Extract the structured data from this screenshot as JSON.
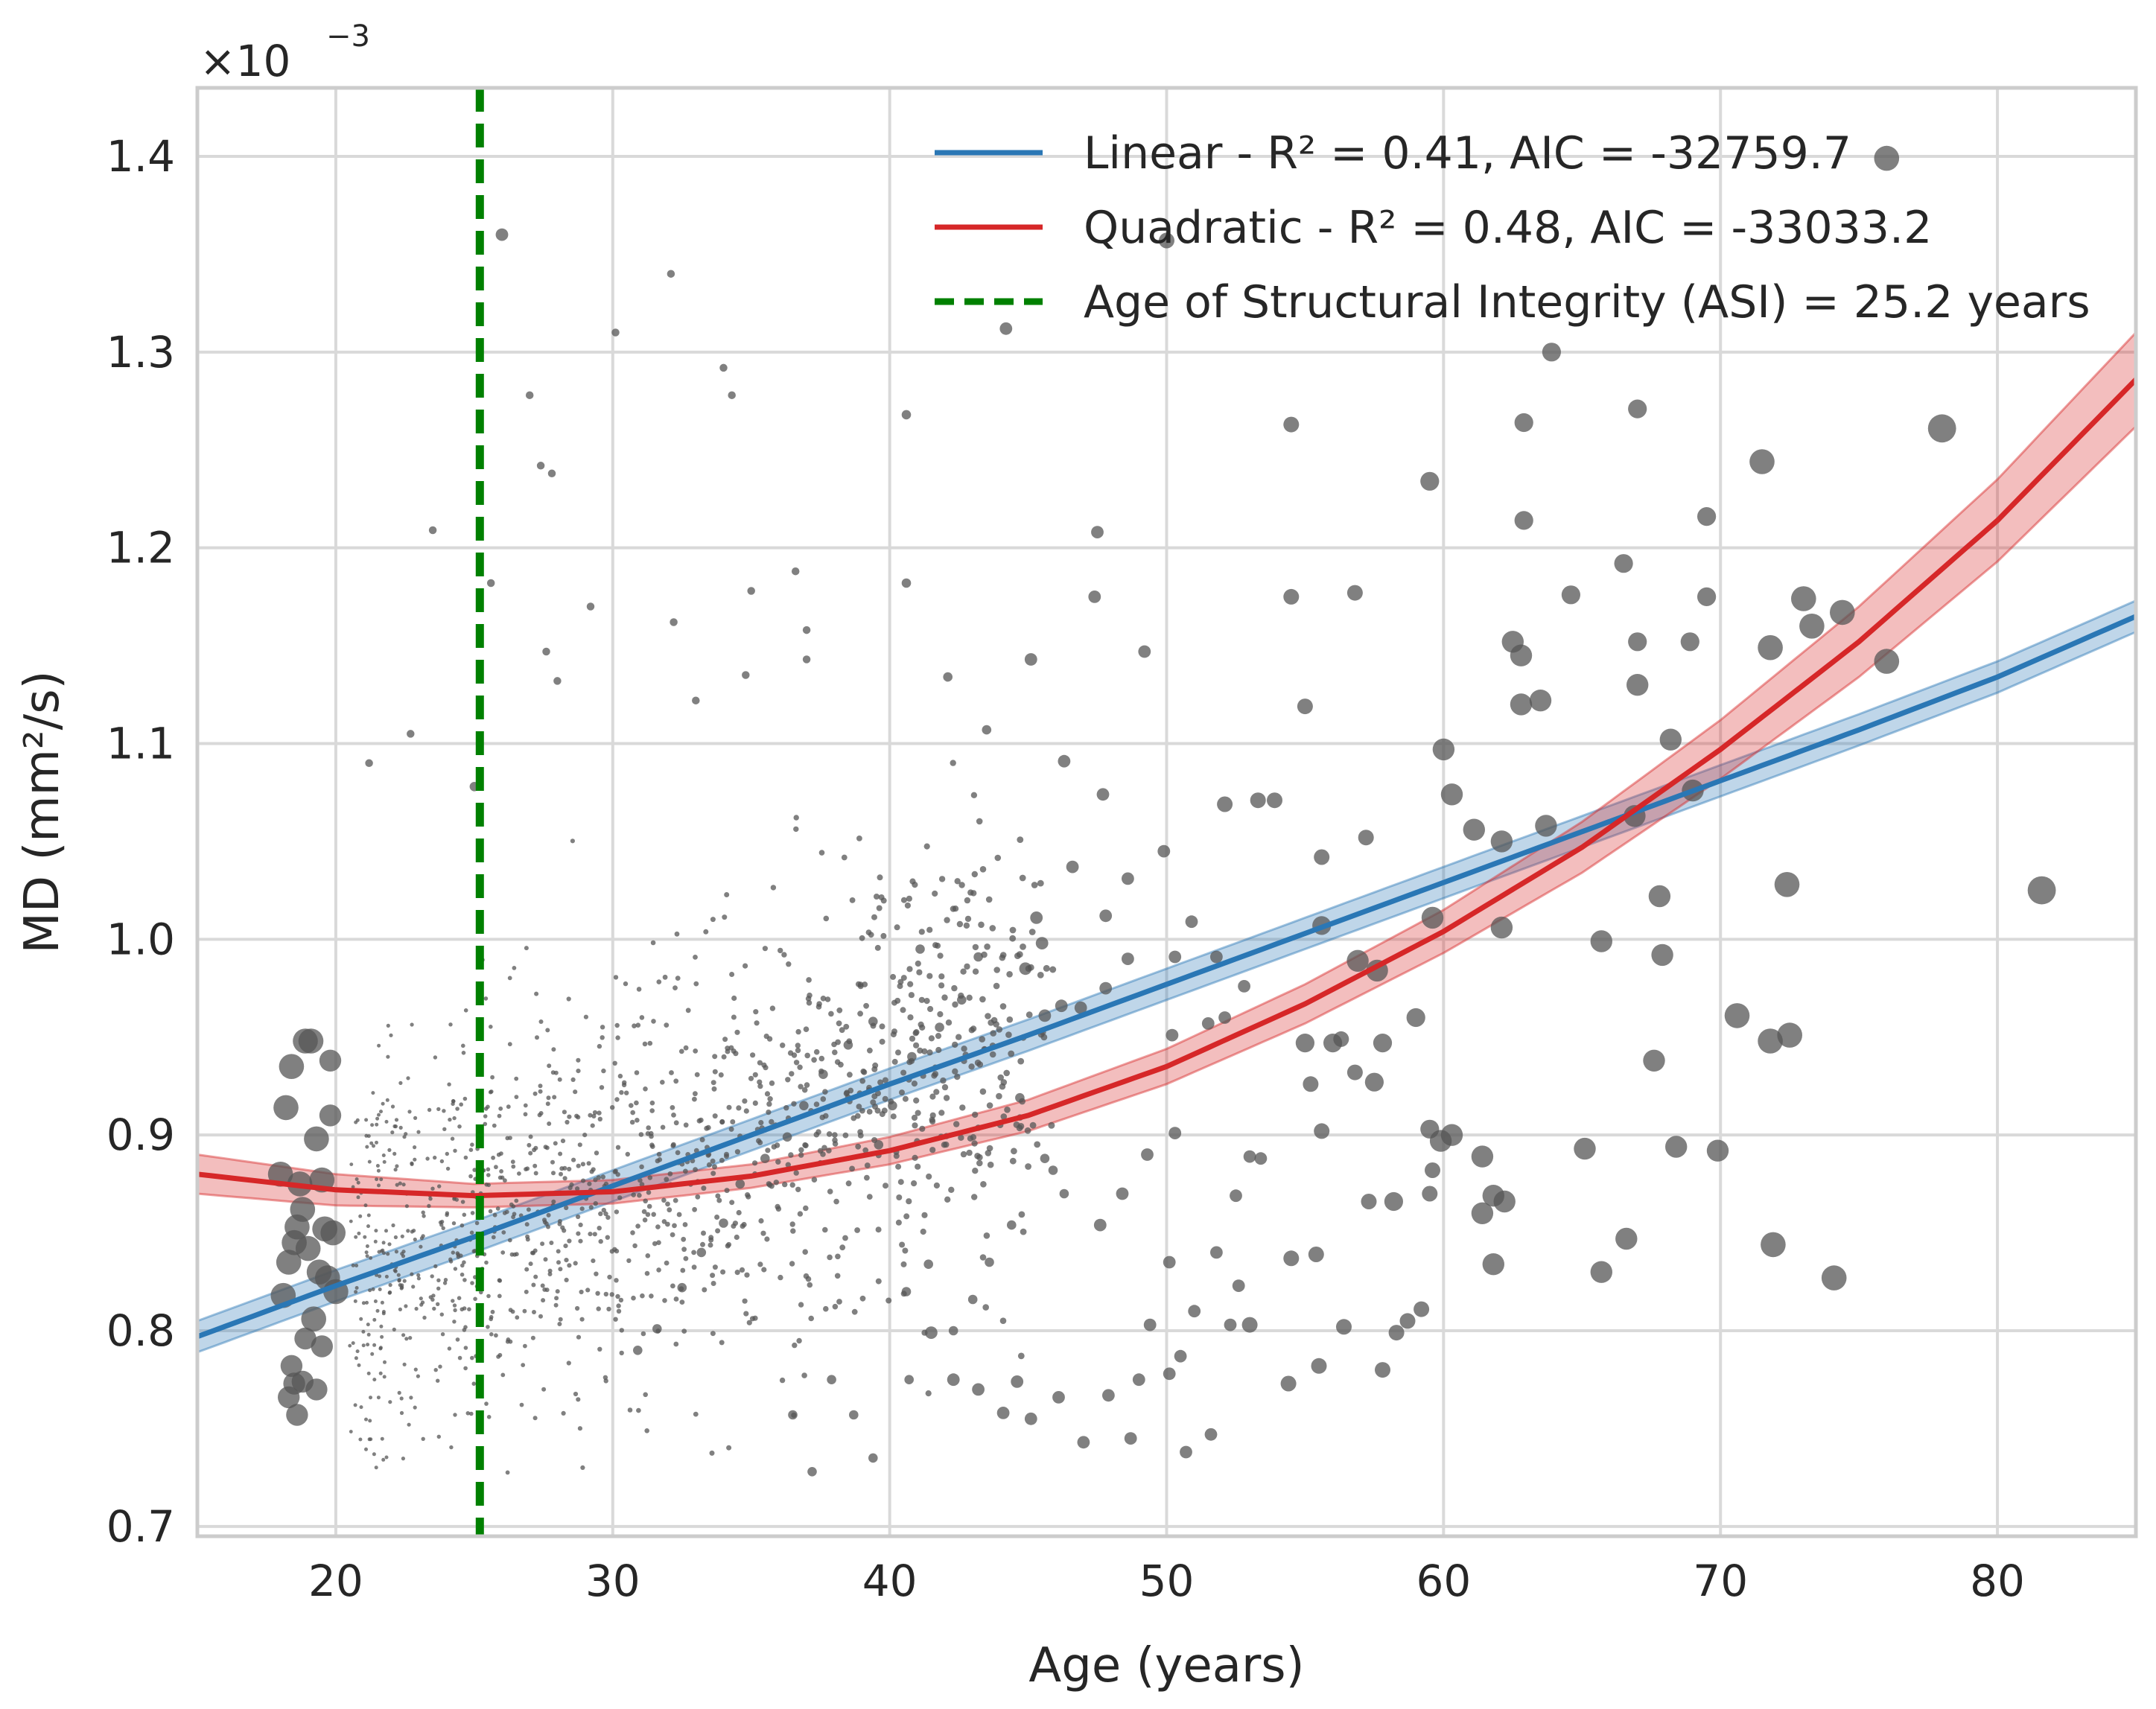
{
  "chart_data": {
    "type": "scatter",
    "title": "",
    "xlabel": "Age (years)",
    "ylabel": "MD (mm²/s)",
    "y_offset_label": "×10",
    "y_offset_exponent": "−3",
    "xlim": [
      15,
      85
    ],
    "ylim": [
      0.695,
      1.435
    ],
    "x_ticks": [
      20,
      30,
      40,
      50,
      60,
      70,
      80
    ],
    "y_ticks": [
      0.7,
      0.8,
      0.9,
      1.0,
      1.1,
      1.2,
      1.3,
      1.4
    ],
    "y_tick_labels": [
      "0.7",
      "0.8",
      "0.9",
      "1.0",
      "1.1",
      "1.2",
      "1.3",
      "1.4"
    ],
    "grid": true,
    "legend_position": "top-right",
    "colors": {
      "linear": "#2a77b5",
      "quadratic": "#d62728",
      "asi": "#008000",
      "points": "#555555",
      "grid": "#d9d9d9",
      "frame": "#cccccc"
    },
    "series": [
      {
        "name": "Linear - R² = 0.41, AIC = -32759.7",
        "kind": "line",
        "fit": "linear",
        "x": [
          15,
          20,
          25,
          30,
          35,
          40,
          45,
          50,
          55,
          60,
          65,
          70,
          75,
          80,
          85
        ],
        "y": [
          0.797,
          0.823,
          0.848,
          0.874,
          0.9,
          0.926,
          0.951,
          0.977,
          1.003,
          1.029,
          1.055,
          1.081,
          1.107,
          1.134,
          1.165
        ],
        "ci_halfwidth": 0.008
      },
      {
        "name": "Quadratic - R² = 0.48, AIC = -33033.2",
        "kind": "line",
        "fit": "quadratic",
        "x": [
          15,
          20,
          25,
          30,
          35,
          40,
          45,
          50,
          55,
          60,
          65,
          70,
          75,
          80,
          85
        ],
        "y": [
          0.88,
          0.872,
          0.869,
          0.871,
          0.879,
          0.892,
          0.91,
          0.935,
          0.967,
          1.004,
          1.047,
          1.097,
          1.152,
          1.214,
          1.286
        ],
        "ci_halfwidth": [
          0.01,
          0.008,
          0.006,
          0.006,
          0.006,
          0.007,
          0.008,
          0.009,
          0.01,
          0.011,
          0.013,
          0.015,
          0.018,
          0.021,
          0.024
        ]
      },
      {
        "name": "Age of Structural Integrity (ASI) = 25.2 years",
        "kind": "vline",
        "x": 25.2
      }
    ],
    "scatter_points": [
      [
        18.0,
        0.88,
        8
      ],
      [
        18.2,
        0.914,
        8
      ],
      [
        18.4,
        0.935,
        8
      ],
      [
        18.6,
        0.853,
        8
      ],
      [
        18.3,
        0.835,
        8
      ],
      [
        18.5,
        0.845,
        8
      ],
      [
        18.1,
        0.818,
        8
      ],
      [
        18.7,
        0.875,
        8
      ],
      [
        18.9,
        0.948,
        8
      ],
      [
        19.1,
        0.948,
        8
      ],
      [
        18.6,
        0.757,
        7
      ],
      [
        18.5,
        0.773,
        7
      ],
      [
        18.8,
        0.774,
        7
      ],
      [
        18.4,
        0.782,
        7
      ],
      [
        18.9,
        0.796,
        7
      ],
      [
        19.3,
        0.898,
        8
      ],
      [
        19.5,
        0.877,
        8
      ],
      [
        19.8,
        0.938,
        7
      ],
      [
        19.6,
        0.852,
        8
      ],
      [
        19.8,
        0.91,
        7
      ],
      [
        19.4,
        0.83,
        8
      ],
      [
        19.2,
        0.806,
        8
      ],
      [
        19.7,
        0.827,
        8
      ],
      [
        20.0,
        0.82,
        8
      ],
      [
        19.9,
        0.85,
        8
      ],
      [
        18.3,
        0.766,
        7
      ],
      [
        19.3,
        0.77,
        7
      ],
      [
        19.5,
        0.792,
        7
      ],
      [
        18.8,
        0.862,
        8
      ],
      [
        19.0,
        0.842,
        8
      ],
      [
        26.0,
        1.36,
        4
      ],
      [
        32.1,
        1.34,
        2.5
      ],
      [
        30.1,
        1.31,
        2.5
      ],
      [
        34.0,
        1.292,
        2.5
      ],
      [
        34.3,
        1.278,
        2.5
      ],
      [
        27.0,
        1.278,
        2.5
      ],
      [
        27.4,
        1.242,
        2.5
      ],
      [
        27.8,
        1.238,
        2.5
      ],
      [
        23.5,
        1.209,
        2.5
      ],
      [
        29.2,
        1.17,
        2.5
      ],
      [
        27.6,
        1.147,
        2.5
      ],
      [
        28.0,
        1.132,
        2.5
      ],
      [
        25.6,
        1.182,
        2.5
      ],
      [
        32.2,
        1.162,
        2.5
      ],
      [
        21.2,
        1.09,
        2.5
      ],
      [
        22.7,
        1.105,
        2.5
      ],
      [
        25.0,
        1.078,
        3
      ],
      [
        35.0,
        1.178,
        2.5
      ],
      [
        36.6,
        1.188,
        2.5
      ],
      [
        37.0,
        1.158,
        2.5
      ],
      [
        37.0,
        1.143,
        2.5
      ],
      [
        34.8,
        1.135,
        2.5
      ],
      [
        33.0,
        1.122,
        2.5
      ],
      [
        40.6,
        1.268,
        3
      ],
      [
        40.6,
        1.182,
        3
      ],
      [
        44.2,
        1.312,
        4
      ],
      [
        42.1,
        1.134,
        3
      ],
      [
        43.5,
        1.107,
        3
      ],
      [
        45.1,
        1.143,
        4
      ],
      [
        47.5,
        1.208,
        4
      ],
      [
        47.4,
        1.175,
        4
      ],
      [
        49.2,
        1.147,
        4
      ],
      [
        46.3,
        1.091,
        4
      ],
      [
        47.7,
        1.074,
        4
      ],
      [
        50.0,
        1.357,
        5
      ],
      [
        52.1,
        1.069,
        5
      ],
      [
        53.3,
        1.071,
        5
      ],
      [
        53.9,
        1.071,
        5
      ],
      [
        55.6,
        1.042,
        5
      ],
      [
        57.2,
        1.052,
        5
      ],
      [
        55.0,
        1.119,
        5
      ],
      [
        54.5,
        1.175,
        5
      ],
      [
        56.8,
        1.177,
        5
      ],
      [
        54.5,
        1.263,
        5
      ],
      [
        59.5,
        1.234,
        6
      ],
      [
        62.9,
        1.264,
        6
      ],
      [
        63.9,
        1.3,
        6
      ],
      [
        62.9,
        1.214,
        6
      ],
      [
        64.6,
        1.176,
        6
      ],
      [
        66.5,
        1.192,
        6
      ],
      [
        67.0,
        1.271,
        6
      ],
      [
        69.5,
        1.216,
        6
      ],
      [
        69.5,
        1.175,
        6
      ],
      [
        68.9,
        1.152,
        6
      ],
      [
        67.0,
        1.152,
        6
      ],
      [
        62.5,
        1.152,
        7
      ],
      [
        62.8,
        1.145,
        7
      ],
      [
        63.5,
        1.122,
        7
      ],
      [
        62.8,
        1.12,
        7
      ],
      [
        67.0,
        1.13,
        7
      ],
      [
        68.2,
        1.102,
        7
      ],
      [
        69.0,
        1.076,
        7
      ],
      [
        66.9,
        1.063,
        7
      ],
      [
        60.0,
        1.097,
        7
      ],
      [
        60.3,
        1.074,
        7
      ],
      [
        61.1,
        1.056,
        7
      ],
      [
        62.1,
        1.05,
        7
      ],
      [
        63.7,
        1.058,
        7
      ],
      [
        65.7,
        0.999,
        7
      ],
      [
        67.8,
        1.022,
        7
      ],
      [
        67.9,
        0.992,
        7
      ],
      [
        62.1,
        1.006,
        7
      ],
      [
        59.6,
        1.011,
        7
      ],
      [
        57.6,
        0.984,
        7
      ],
      [
        56.9,
        0.989,
        7
      ],
      [
        55.6,
        1.007,
        6
      ],
      [
        55.0,
        0.947,
        6
      ],
      [
        56.0,
        0.947,
        6
      ],
      [
        57.5,
        0.927,
        6
      ],
      [
        57.8,
        0.947,
        6
      ],
      [
        58.2,
        0.866,
        6
      ],
      [
        59.0,
        0.96,
        6
      ],
      [
        59.5,
        0.903,
        6
      ],
      [
        60.3,
        0.9,
        7
      ],
      [
        59.9,
        0.897,
        7
      ],
      [
        61.4,
        0.889,
        7
      ],
      [
        61.4,
        0.86,
        7
      ],
      [
        61.8,
        0.869,
        7
      ],
      [
        62.2,
        0.866,
        7
      ],
      [
        61.8,
        0.834,
        7
      ],
      [
        65.1,
        0.893,
        7
      ],
      [
        66.6,
        0.847,
        7
      ],
      [
        65.7,
        0.83,
        7
      ],
      [
        67.6,
        0.938,
        7
      ],
      [
        68.4,
        0.894,
        7
      ],
      [
        69.9,
        0.892,
        7
      ],
      [
        70.6,
        0.961,
        8
      ],
      [
        71.8,
        0.948,
        8
      ],
      [
        72.5,
        0.951,
        8
      ],
      [
        72.4,
        1.028,
        8
      ],
      [
        71.9,
        0.844,
        8
      ],
      [
        74.1,
        0.827,
        8
      ],
      [
        71.5,
        1.244,
        8
      ],
      [
        71.8,
        1.149,
        8
      ],
      [
        73.0,
        1.174,
        8
      ],
      [
        73.3,
        1.16,
        8
      ],
      [
        74.4,
        1.167,
        8
      ],
      [
        76.0,
        1.142,
        8
      ],
      [
        76.0,
        1.399,
        8
      ],
      [
        78.0,
        1.261,
        9
      ],
      [
        81.6,
        1.025,
        9
      ],
      [
        50.7,
        0.738,
        4
      ],
      [
        51.6,
        0.747,
        4
      ],
      [
        50.1,
        0.778,
        4
      ],
      [
        52.3,
        0.803,
        4
      ],
      [
        51.8,
        0.84,
        4
      ],
      [
        52.5,
        0.869,
        4
      ],
      [
        53.0,
        0.889,
        4
      ],
      [
        53.4,
        0.888,
        4
      ],
      [
        52.6,
        0.823,
        4
      ],
      [
        53.0,
        0.803,
        5
      ],
      [
        54.5,
        0.837,
        5
      ],
      [
        54.4,
        0.773,
        5
      ],
      [
        55.5,
        0.782,
        5
      ],
      [
        56.4,
        0.802,
        5
      ],
      [
        55.4,
        0.839,
        5
      ],
      [
        55.2,
        0.926,
        5
      ],
      [
        55.6,
        0.902,
        5
      ],
      [
        56.3,
        0.949,
        5
      ],
      [
        56.8,
        0.932,
        5
      ],
      [
        57.3,
        0.866,
        5
      ],
      [
        58.3,
        0.799,
        5
      ],
      [
        58.7,
        0.805,
        5
      ],
      [
        59.2,
        0.811,
        5
      ],
      [
        57.8,
        0.78,
        5
      ],
      [
        59.6,
        0.882,
        5
      ],
      [
        59.5,
        0.87,
        5
      ],
      [
        50.1,
        0.835,
        4
      ],
      [
        51.0,
        0.81,
        4
      ],
      [
        50.5,
        0.787,
        4
      ],
      [
        49.4,
        0.803,
        4
      ],
      [
        49.0,
        0.775,
        4
      ],
      [
        48.7,
        0.745,
        4
      ],
      [
        47.9,
        0.767,
        4
      ],
      [
        47.0,
        0.743,
        4
      ],
      [
        46.1,
        0.766,
        4
      ],
      [
        45.1,
        0.755,
        4
      ],
      [
        44.6,
        0.774,
        4
      ],
      [
        44.1,
        0.758,
        4
      ],
      [
        43.2,
        0.77,
        4
      ],
      [
        42.3,
        0.775,
        4
      ],
      [
        41.5,
        0.799,
        4
      ],
      [
        47.6,
        0.854,
        4
      ],
      [
        48.4,
        0.87,
        4
      ],
      [
        49.3,
        0.89,
        4
      ],
      [
        50.3,
        0.901,
        4
      ],
      [
        50.2,
        0.951,
        4
      ],
      [
        51.5,
        0.957,
        4
      ],
      [
        52.1,
        0.96,
        4
      ],
      [
        50.3,
        0.991,
        4
      ],
      [
        50.9,
        1.009,
        4
      ],
      [
        51.8,
        0.991,
        4
      ],
      [
        52.8,
        0.976,
        4
      ],
      [
        48.6,
        0.99,
        4
      ],
      [
        47.8,
        0.975,
        4
      ],
      [
        46.9,
        0.965,
        4
      ],
      [
        46.2,
        0.966,
        4
      ],
      [
        45.6,
        0.961,
        4
      ],
      [
        44.9,
        0.985,
        4
      ],
      [
        45.5,
        0.998,
        4
      ],
      [
        47.8,
        1.012,
        4
      ],
      [
        48.6,
        1.031,
        4
      ],
      [
        49.9,
        1.045,
        4
      ],
      [
        46.6,
        1.037,
        4
      ],
      [
        45.3,
        1.011,
        4
      ],
      [
        44.7,
        0.919,
        3
      ],
      [
        45.6,
        0.888,
        3
      ],
      [
        45.9,
        0.882,
        3
      ],
      [
        46.3,
        0.87,
        3
      ],
      [
        44.4,
        0.854,
        3
      ],
      [
        43.6,
        0.835,
        3
      ],
      [
        43.0,
        0.816,
        3
      ],
      [
        42.3,
        0.8,
        3
      ],
      [
        41.4,
        0.834,
        3
      ],
      [
        40.6,
        0.82,
        3
      ],
      [
        40.7,
        0.775,
        3
      ],
      [
        39.4,
        0.735,
        3
      ],
      [
        38.7,
        0.757,
        3
      ],
      [
        37.9,
        0.775,
        3
      ],
      [
        37.2,
        0.728,
        3
      ],
      [
        36.5,
        0.757,
        3
      ],
      [
        39.6,
        0.895,
        3
      ],
      [
        40.1,
        0.915,
        3
      ],
      [
        40.8,
        0.94,
        3
      ],
      [
        41.8,
        0.955,
        3
      ],
      [
        42.6,
        0.969,
        3
      ],
      [
        43.2,
        0.991,
        3
      ],
      [
        41.1,
        0.995,
        3
      ],
      [
        39.4,
        0.958,
        3
      ],
      [
        38.5,
        0.946,
        3
      ],
      [
        37.6,
        0.931,
        3
      ],
      [
        36.9,
        0.915,
        3
      ],
      [
        36.3,
        0.899,
        3
      ],
      [
        35.5,
        0.888,
        3
      ],
      [
        34.6,
        0.875,
        3
      ],
      [
        34.0,
        0.855,
        3
      ],
      [
        33.2,
        0.84,
        3
      ],
      [
        32.5,
        0.822,
        3
      ],
      [
        31.6,
        0.801,
        3
      ],
      [
        30.9,
        0.79,
        3
      ]
    ],
    "background_cloud": {
      "x_range": [
        20,
        45
      ],
      "y_center_fn": "linear",
      "count": 1400,
      "spread": 0.055
    }
  }
}
